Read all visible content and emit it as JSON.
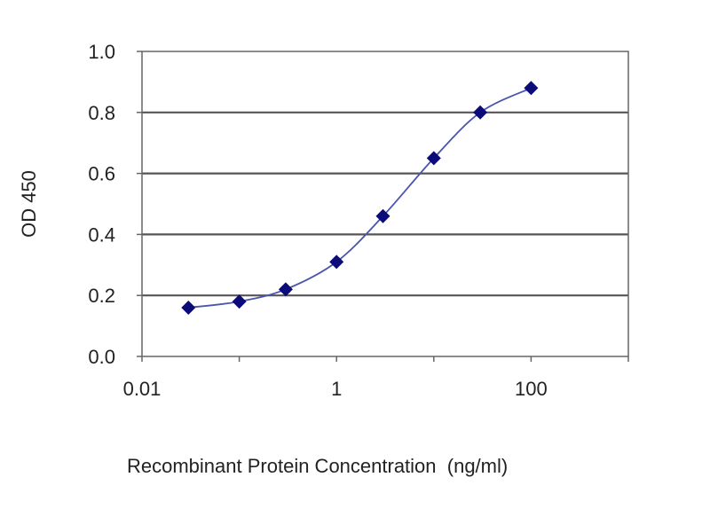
{
  "chart_data": {
    "type": "scatter",
    "title": "",
    "xlabel": "Recombinant Protein Concentration  (ng/ml)",
    "ylabel": "OD 450",
    "x_scale": "log10",
    "xlim": [
      0.01,
      1000
    ],
    "ylim": [
      0.0,
      1.0
    ],
    "x_ticks": [
      0.01,
      1,
      100
    ],
    "x_tick_labels": [
      "0.01",
      "1",
      "100"
    ],
    "y_ticks": [
      0.0,
      0.2,
      0.4,
      0.6,
      0.8,
      1.0
    ],
    "y_tick_labels": [
      "0.0",
      "0.2",
      "0.4",
      "0.6",
      "0.8",
      "1.0"
    ],
    "grid": "horizontal",
    "legend": "none",
    "colors": {
      "marker": "#0b0b7a",
      "line": "#4a55b0",
      "grid": "#555555",
      "frame": "#666666"
    },
    "series": [
      {
        "x": [
          0.03,
          0.1,
          0.3,
          1,
          3,
          10,
          30,
          100
        ],
        "y": [
          0.16,
          0.18,
          0.22,
          0.31,
          0.46,
          0.65,
          0.8,
          0.88
        ]
      }
    ]
  }
}
